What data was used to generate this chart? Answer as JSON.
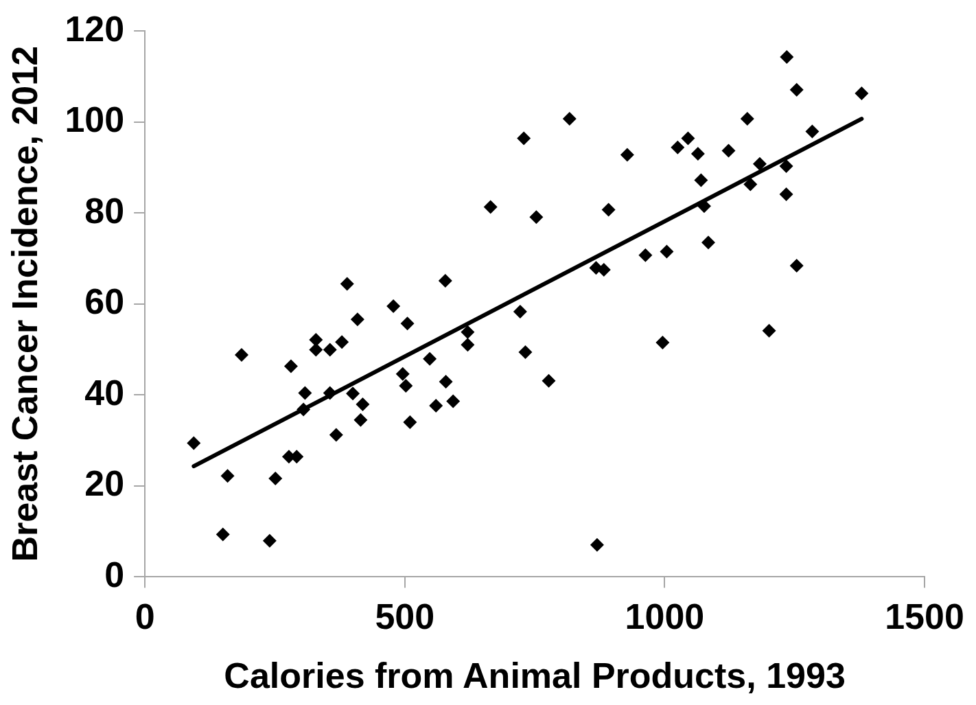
{
  "chart_data": {
    "type": "scatter",
    "xlabel": "Calories from Animal Products, 1993",
    "ylabel": "Breast Cancer Incidence, 2012",
    "marker": "diamond",
    "grid": false,
    "legend": false,
    "xlim": [
      0,
      1500
    ],
    "xticks": [
      0,
      500,
      1000,
      1500
    ],
    "ylim": [
      0,
      120
    ],
    "yticks": [
      0,
      20,
      40,
      60,
      80,
      100,
      120
    ],
    "series": [
      {
        "color": "#000000",
        "x": [
          94,
          159,
          150,
          186,
          240,
          251,
          277,
          292,
          281,
          308,
          305,
          329,
          329,
          356,
          379,
          356,
          368,
          389,
          400,
          409,
          419,
          415,
          478,
          496,
          502,
          505,
          510,
          548,
          560,
          578,
          579,
          593,
          621,
          621,
          665,
          722,
          729,
          732,
          753,
          777,
          817,
          868,
          883,
          870,
          892,
          928,
          963,
          1004,
          996,
          1025,
          1045,
          1064,
          1070,
          1076,
          1084,
          1123,
          1159,
          1165,
          1183,
          1201,
          1234,
          1234,
          1235,
          1254,
          1254,
          1284,
          1379
        ],
        "values": [
          29.4,
          22.2,
          9.3,
          48.8,
          7.9,
          21.6,
          26.4,
          26.4,
          46.3,
          40.4,
          36.8,
          52.1,
          49.9,
          49.9,
          51.6,
          40.4,
          31.2,
          64.4,
          40.3,
          56.6,
          37.9,
          34.5,
          59.5,
          44.6,
          42.0,
          55.7,
          34.0,
          47.9,
          37.6,
          65.1,
          42.9,
          38.6,
          53.8,
          51.0,
          81.3,
          58.3,
          96.4,
          49.4,
          79.1,
          43.1,
          100.7,
          67.9,
          67.5,
          7.0,
          80.7,
          92.8,
          70.7,
          71.5,
          51.5,
          94.4,
          96.4,
          93.0,
          87.2,
          81.5,
          73.5,
          93.7,
          100.7,
          86.3,
          90.8,
          54.1,
          90.3,
          84.1,
          114.3,
          107.1,
          68.4,
          97.9,
          106.3
        ]
      },
      {
        "type": "line",
        "marker": "none",
        "color": "#000000",
        "x": [
          94,
          1379
        ],
        "values": [
          24.3,
          100.7
        ]
      }
    ]
  }
}
